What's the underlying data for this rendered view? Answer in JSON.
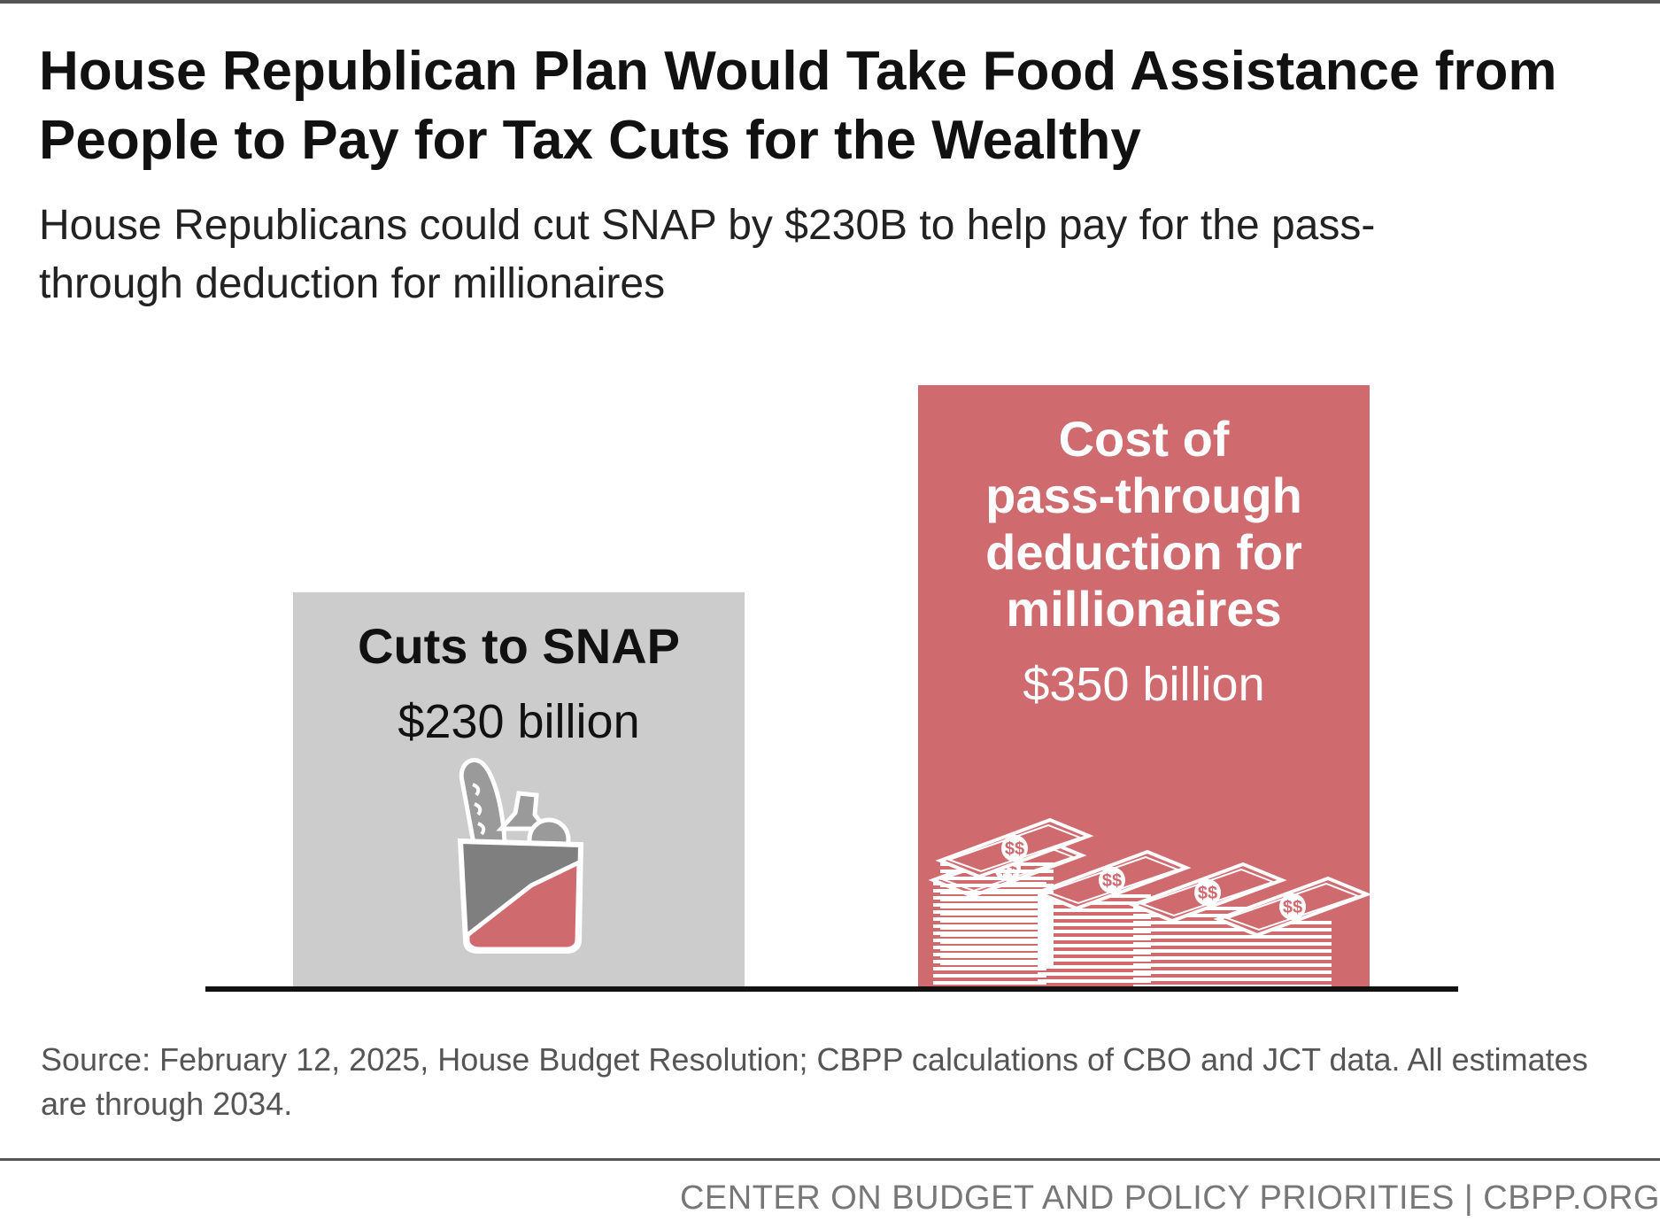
{
  "header": {
    "title": "House Republican Plan Would Take Food Assistance from People to Pay for Tax Cuts for the Wealthy",
    "subtitle": "House Republicans could cut SNAP by $230B to help pay for the pass-through deduction for millionaires"
  },
  "chart_data": {
    "type": "bar",
    "title": "House Republican Plan Would Take Food Assistance from People to Pay for Tax Cuts for the Wealthy",
    "subtitle": "House Republicans could cut SNAP by $230B to help pay for the pass-through deduction for millionaires",
    "categories": [
      "Cuts to SNAP",
      "Cost of pass-through deduction for millionaires"
    ],
    "values": [
      230,
      350
    ],
    "unit": "billion dollars",
    "labels": [
      {
        "name_lines": [
          "Cuts to SNAP"
        ],
        "value_label": "$230 billion"
      },
      {
        "name_lines": [
          "Cost of",
          "pass-through",
          "deduction for",
          "millionaires"
        ],
        "value_label": "$350 billion"
      }
    ],
    "colors": [
      "#cccccc",
      "#cf6a6f"
    ],
    "label_colors": [
      "#111111",
      "#ffffff"
    ],
    "icons": [
      "grocery-bag-icon",
      "money-stacks-icon"
    ],
    "xlabel": "",
    "ylabel": "",
    "ylim": [
      0,
      350
    ],
    "grid": false,
    "legend": "none"
  },
  "footnote": {
    "source": "Source: February 12, 2025, House Budget Resolution; CBPP calculations of CBO and JCT data. All estimates are through 2034."
  },
  "footer": {
    "org": "CENTER ON BUDGET AND POLICY PRIORITIES | CBPP.ORG"
  }
}
